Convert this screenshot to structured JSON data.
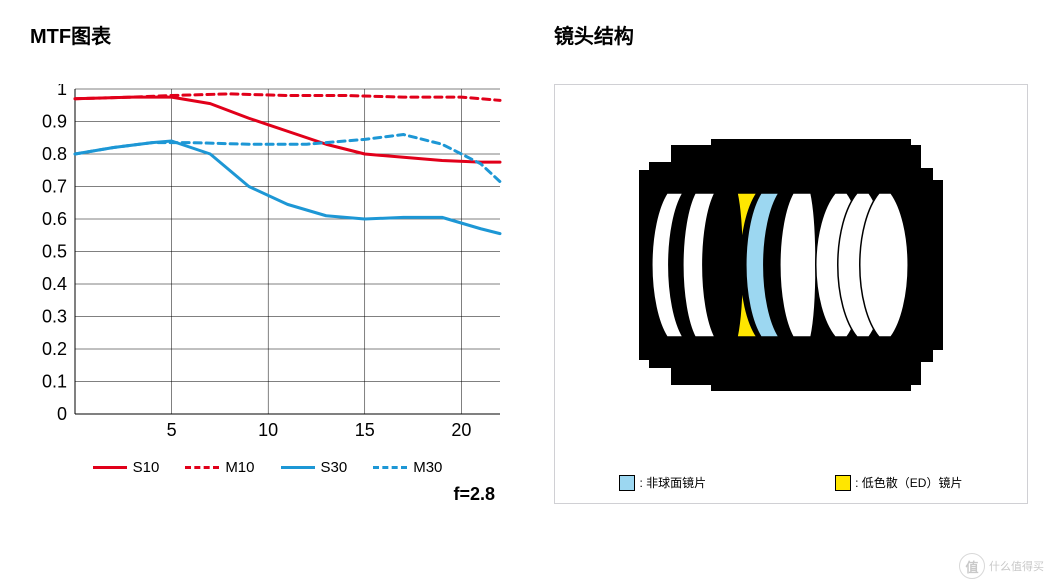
{
  "left": {
    "title": "MTF图表",
    "aperture_label": "f=2.8",
    "chart": {
      "type": "line",
      "xlim": [
        0,
        22
      ],
      "ylim": [
        0,
        1
      ],
      "xtick_values": [
        5,
        10,
        15,
        20
      ],
      "ytick_values": [
        0,
        0.1,
        0.2,
        0.3,
        0.4,
        0.5,
        0.6,
        0.7,
        0.8,
        0.9,
        1
      ],
      "ytick_labels": [
        "0",
        "0.1",
        "0.2",
        "0.3",
        "0.4",
        "0.5",
        "0.6",
        "0.7",
        "0.8",
        "0.9",
        "1"
      ],
      "xtick_labels": [
        "5",
        "10",
        "15",
        "20"
      ],
      "grid_color": "#000000",
      "grid_width": 0.5,
      "background_color": "#ffffff",
      "axis_fontsize": 18,
      "line_width": 3,
      "dash_pattern": "7 5",
      "series": {
        "S10": {
          "color": "#e1001a",
          "dashed": false,
          "x": [
            0,
            3,
            5,
            7,
            9,
            11,
            13,
            15,
            17,
            19,
            21,
            22
          ],
          "y": [
            0.97,
            0.975,
            0.975,
            0.955,
            0.91,
            0.87,
            0.83,
            0.8,
            0.79,
            0.78,
            0.775,
            0.775
          ]
        },
        "M10": {
          "color": "#e1001a",
          "dashed": true,
          "x": [
            0,
            3,
            5,
            8,
            11,
            14,
            17,
            20,
            22
          ],
          "y": [
            0.97,
            0.975,
            0.98,
            0.985,
            0.98,
            0.98,
            0.975,
            0.975,
            0.965
          ]
        },
        "S30": {
          "color": "#1d97d5",
          "dashed": false,
          "x": [
            0,
            2,
            4,
            5,
            7,
            9,
            11,
            13,
            15,
            17,
            19,
            21,
            22
          ],
          "y": [
            0.8,
            0.82,
            0.835,
            0.84,
            0.8,
            0.7,
            0.645,
            0.61,
            0.6,
            0.605,
            0.605,
            0.57,
            0.555
          ]
        },
        "M30": {
          "color": "#1d97d5",
          "dashed": true,
          "x": [
            0,
            2,
            4,
            6,
            9,
            12,
            15,
            17,
            19,
            21,
            22
          ],
          "y": [
            0.8,
            0.82,
            0.835,
            0.835,
            0.83,
            0.83,
            0.845,
            0.86,
            0.83,
            0.77,
            0.715
          ]
        }
      }
    },
    "legend": [
      {
        "label": "S10",
        "color": "#e1001a",
        "dashed": false
      },
      {
        "label": "M10",
        "color": "#e1001a",
        "dashed": true
      },
      {
        "label": "S30",
        "color": "#1d97d5",
        "dashed": false
      },
      {
        "label": "M30",
        "color": "#1d97d5",
        "dashed": true
      }
    ]
  },
  "right": {
    "title": "镜头结构",
    "diagram": {
      "aspherical_color": "#9cd7f1",
      "ed_color": "#ffe600",
      "body_color": "#000000",
      "bg_color": "#ffffff",
      "outline_color": "#000000"
    },
    "legend": {
      "asph_label": ": 非球面镜片",
      "ed_label": ": 低色散（ED）镜片"
    }
  },
  "watermark": {
    "coin": "值",
    "text": "什么值得买"
  }
}
